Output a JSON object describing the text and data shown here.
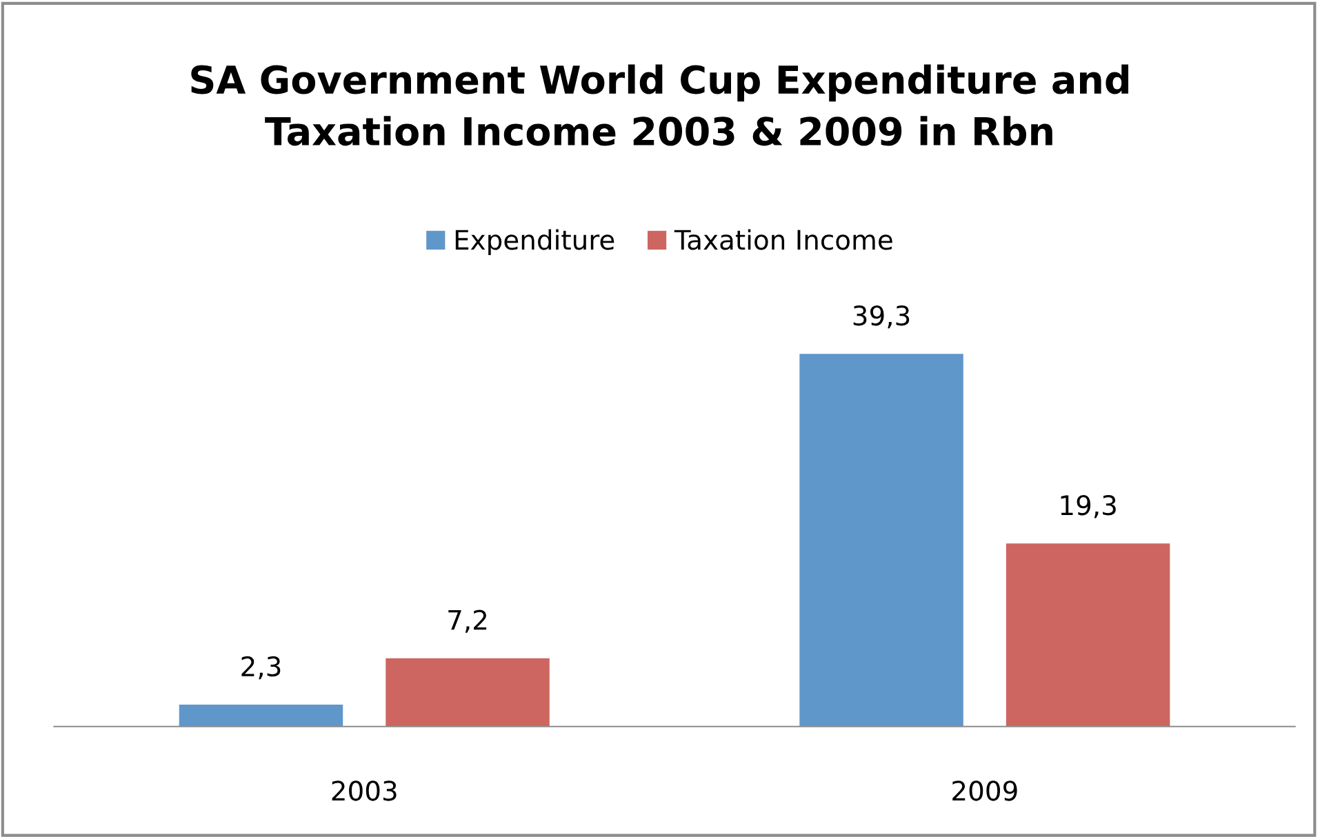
{
  "chart_data": {
    "type": "bar",
    "title": "SA Government World Cup Expenditure and\nTaxation Income 2003 & 2009 in Rbn",
    "categories": [
      "2003",
      "2009"
    ],
    "series": [
      {
        "name": "Expenditure",
        "color": "#6097cb",
        "values": [
          2.3,
          39.3
        ],
        "value_labels": [
          "2,3",
          "39,3"
        ]
      },
      {
        "name": "Taxation Income",
        "color": "#cd6660",
        "values": [
          7.2,
          19.3
        ],
        "value_labels": [
          "7,2",
          "19,3"
        ]
      }
    ],
    "grid": false,
    "legend": "top"
  }
}
